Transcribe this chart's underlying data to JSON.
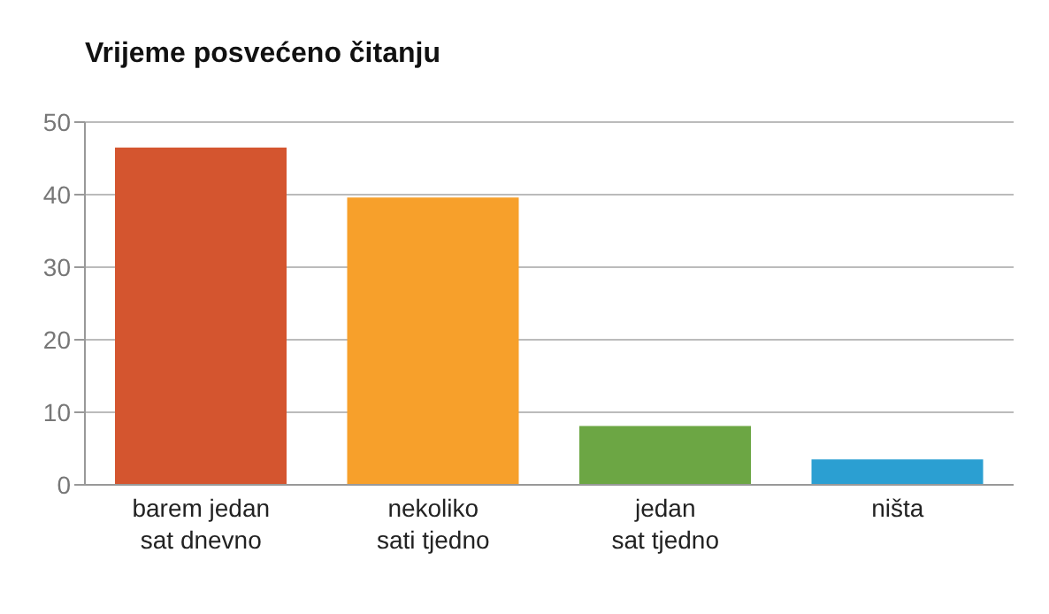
{
  "chart_data": {
    "type": "bar",
    "title": "Vrijeme posvećeno čitanju",
    "categories": [
      "barem jedan\nsat dnevno",
      "nekoliko\nsati tjedno",
      "jedan\nsat tjedno",
      "ništa"
    ],
    "values": [
      46.5,
      39.6,
      8.1,
      3.5
    ],
    "colors": [
      "#d4552f",
      "#f7a02b",
      "#6ca644",
      "#2b9fd2"
    ],
    "ylim": [
      0,
      50
    ],
    "yticks": [
      0,
      10,
      20,
      30,
      40,
      50
    ],
    "grid": "y"
  }
}
